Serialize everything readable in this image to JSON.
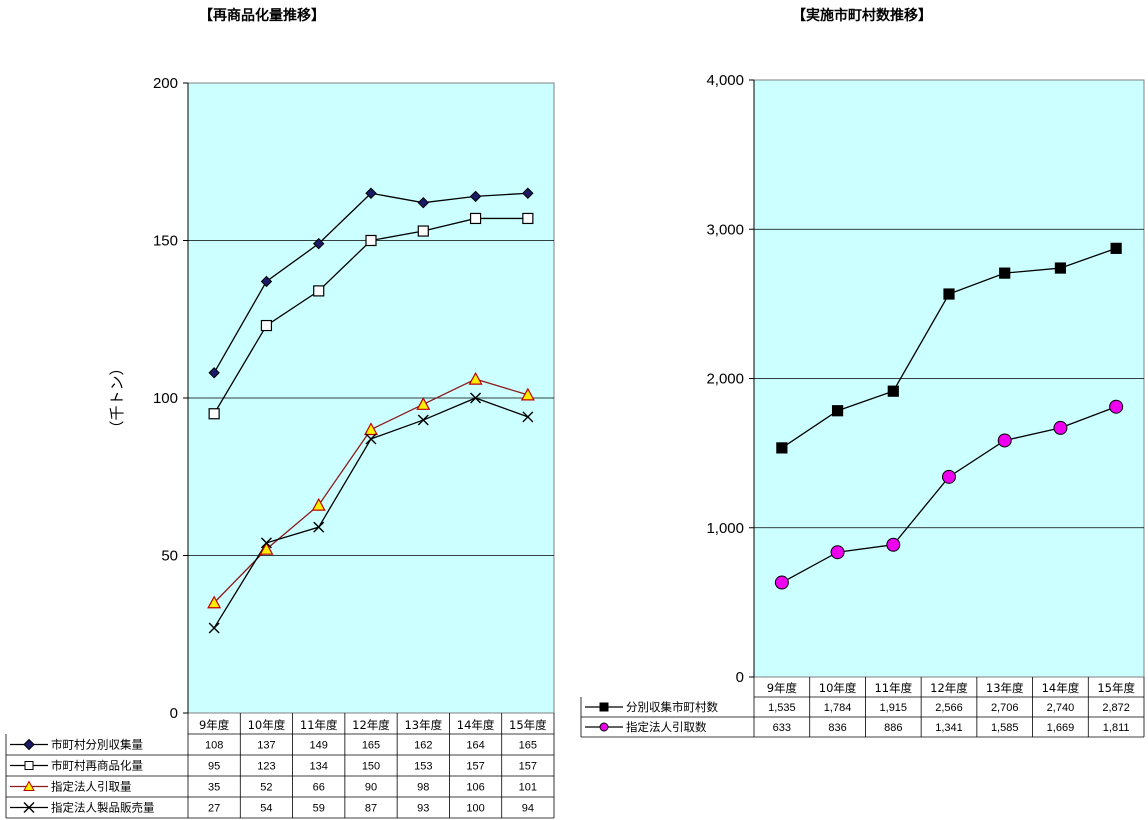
{
  "chart_data": [
    {
      "type": "line",
      "title": "【再商品化量推移】",
      "ylabel": "（千トン）",
      "ylim": [
        0,
        200
      ],
      "yticks": [
        "0",
        "50",
        "100",
        "150",
        "200"
      ],
      "categories": [
        "9年度",
        "10年度",
        "11年度",
        "12年度",
        "13年度",
        "14年度",
        "15年度"
      ],
      "grid": true,
      "legend": "bottom table",
      "series": [
        {
          "name": "市町村分別収集量",
          "marker": "diamond",
          "color": "#000000",
          "fill": "#1a1a66",
          "values": [
            108,
            137,
            149,
            165,
            162,
            164,
            165
          ],
          "labels": [
            "108",
            "137",
            "149",
            "165",
            "162",
            "164",
            "165"
          ]
        },
        {
          "name": "市町村再商品化量",
          "marker": "square-open",
          "color": "#000000",
          "fill": "#ffffff",
          "values": [
            95,
            123,
            134,
            150,
            153,
            157,
            157
          ],
          "labels": [
            "95",
            "123",
            "134",
            "150",
            "153",
            "157",
            "157"
          ]
        },
        {
          "name": "指定法人引取量",
          "marker": "triangle",
          "color": "#8b1a1a",
          "fill": "#ffee00",
          "values": [
            35,
            52,
            66,
            90,
            98,
            106,
            101
          ],
          "labels": [
            "35",
            "52",
            "66",
            "90",
            "98",
            "106",
            "101"
          ]
        },
        {
          "name": "指定法人製品販売量",
          "marker": "x",
          "color": "#000000",
          "fill": "none",
          "values": [
            27,
            54,
            59,
            87,
            93,
            100,
            94
          ],
          "labels": [
            "27",
            "54",
            "59",
            "87",
            "93",
            "100",
            "94"
          ]
        }
      ]
    },
    {
      "type": "line",
      "title": "【実施市町村数推移】",
      "ylim": [
        0,
        4000
      ],
      "yticks": [
        "0",
        "1,000",
        "2,000",
        "3,000",
        "4,000"
      ],
      "categories": [
        "9年度",
        "10年度",
        "11年度",
        "12年度",
        "13年度",
        "14年度",
        "15年度"
      ],
      "grid": true,
      "legend": "bottom table",
      "series": [
        {
          "name": "分別収集市町村数",
          "marker": "square",
          "color": "#000000",
          "fill": "#000000",
          "values": [
            1535,
            1784,
            1915,
            2566,
            2706,
            2740,
            2872
          ],
          "labels": [
            "1,535",
            "1,784",
            "1,915",
            "2,566",
            "2,706",
            "2,740",
            "2,872"
          ]
        },
        {
          "name": "指定法人引取数",
          "marker": "circle",
          "color": "#000000",
          "fill": "#ee00ee",
          "values": [
            633,
            836,
            886,
            1341,
            1585,
            1669,
            1811
          ],
          "labels": [
            "633",
            "836",
            "886",
            "1,341",
            "1,585",
            "1,669",
            "1,811"
          ]
        }
      ]
    }
  ],
  "colors": {
    "plot_bg": "#ccffff",
    "grid": "#000000"
  }
}
